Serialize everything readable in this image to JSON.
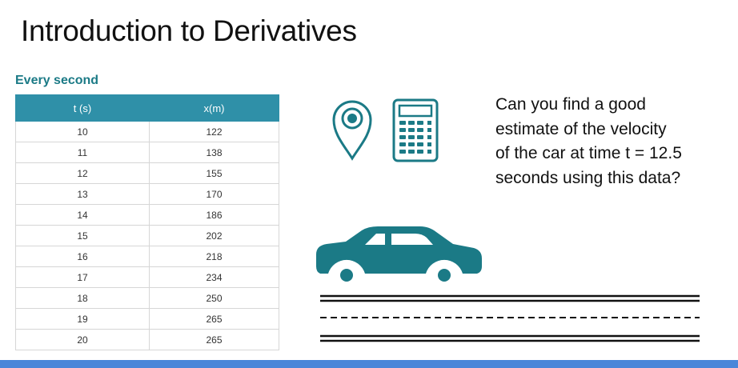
{
  "slide": {
    "title": "Introduction to Derivatives",
    "subtitle": "Every second"
  },
  "table": {
    "headers": [
      "t (s)",
      "x(m)"
    ],
    "rows": [
      [
        "10",
        "122"
      ],
      [
        "11",
        "138"
      ],
      [
        "12",
        "155"
      ],
      [
        "13",
        "170"
      ],
      [
        "14",
        "186"
      ],
      [
        "15",
        "202"
      ],
      [
        "16",
        "218"
      ],
      [
        "17",
        "234"
      ],
      [
        "18",
        "250"
      ],
      [
        "19",
        "265"
      ],
      [
        "20",
        "265"
      ]
    ]
  },
  "question": {
    "lines": [
      "Can you find a good",
      "estimate of the velocity",
      "of the car at time t = 12.5",
      "seconds using this data?"
    ]
  },
  "icons": {
    "location": "location-pin-icon",
    "calculator": "calculator-icon",
    "car": "car-icon",
    "road": "road-lines"
  },
  "colors": {
    "accent": "#1b7a86",
    "table_header": "#2f90a8",
    "bottom_bar": "#4a86d9"
  }
}
